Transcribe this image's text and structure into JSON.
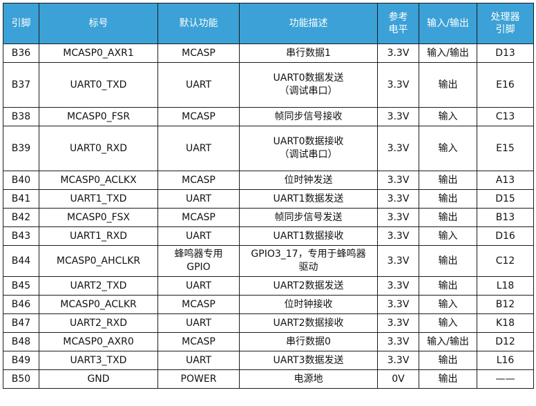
{
  "table": {
    "headers": [
      "引脚",
      "标号",
      "默认功能",
      "功能描述",
      "参考\n电平",
      "输入/输出",
      "处理器\n引脚"
    ],
    "rows": [
      {
        "pin": "B36",
        "label": "MCASP0_AXR1",
        "default_function": "MCASP",
        "description": "串行数据1",
        "voltage": "3.3V",
        "direction": "输入/输出",
        "cpu_pin": "D13"
      },
      {
        "pin": "B37",
        "label": "UART0_TXD",
        "default_function": "UART",
        "description": "UART0数据发送\n（调试串口）",
        "voltage": "3.3V",
        "direction": "输出",
        "cpu_pin": "E16"
      },
      {
        "pin": "B38",
        "label": "MCASP0_FSR",
        "default_function": "MCASP",
        "description": "帧同步信号接收",
        "voltage": "3.3V",
        "direction": "输入",
        "cpu_pin": "C13"
      },
      {
        "pin": "B39",
        "label": "UART0_RXD",
        "default_function": "UART",
        "description": "UART0数据接收\n（调试串口）",
        "voltage": "3.3V",
        "direction": "输入",
        "cpu_pin": "E15"
      },
      {
        "pin": "B40",
        "label": "MCASP0_ACLKX",
        "default_function": "MCASP",
        "description": "位时钟发送",
        "voltage": "3.3V",
        "direction": "输出",
        "cpu_pin": "A13"
      },
      {
        "pin": "B41",
        "label": "UART1_TXD",
        "default_function": "UART",
        "description": "UART1数据发送",
        "voltage": "3.3V",
        "direction": "输出",
        "cpu_pin": "D15"
      },
      {
        "pin": "B42",
        "label": "MCASP0_FSX",
        "default_function": "MCASP",
        "description": "帧同步信号发送",
        "voltage": "3.3V",
        "direction": "输出",
        "cpu_pin": "B13"
      },
      {
        "pin": "B43",
        "label": "UART1_RXD",
        "default_function": "UART",
        "description": "UART1数据接收",
        "voltage": "3.3V",
        "direction": "输入",
        "cpu_pin": "D16"
      },
      {
        "pin": "B44",
        "label": "MCASP0_AHCLKR",
        "default_function": "蜂鸣器专用\nGPIO",
        "description": "GPIO3_17，专用于蜂鸣器\n驱动",
        "voltage": "3.3V",
        "direction": "输出",
        "cpu_pin": "C12"
      },
      {
        "pin": "B45",
        "label": "UART2_TXD",
        "default_function": "UART",
        "description": "UART2数据发送",
        "voltage": "3.3V",
        "direction": "输出",
        "cpu_pin": "L18"
      },
      {
        "pin": "B46",
        "label": "MCASP0_ACLKR",
        "default_function": "MCASP",
        "description": "位时钟接收",
        "voltage": "3.3V",
        "direction": "输入",
        "cpu_pin": "B12"
      },
      {
        "pin": "B47",
        "label": "UART2_RXD",
        "default_function": "UART",
        "description": "UART2数据接收",
        "voltage": "3.3V",
        "direction": "输入",
        "cpu_pin": "K18"
      },
      {
        "pin": "B48",
        "label": "MCASP0_AXR0",
        "default_function": "MCASP",
        "description": "串行数据0",
        "voltage": "3.3V",
        "direction": "输入/输出",
        "cpu_pin": "D12"
      },
      {
        "pin": "B49",
        "label": "UART3_TXD",
        "default_function": "UART",
        "description": "UART3数据发送",
        "voltage": "3.3V",
        "direction": "输出",
        "cpu_pin": "L16"
      },
      {
        "pin": "B50",
        "label": "GND",
        "default_function": "POWER",
        "description": "电源地",
        "voltage": "0V",
        "direction": "输出",
        "cpu_pin": "——"
      }
    ]
  }
}
